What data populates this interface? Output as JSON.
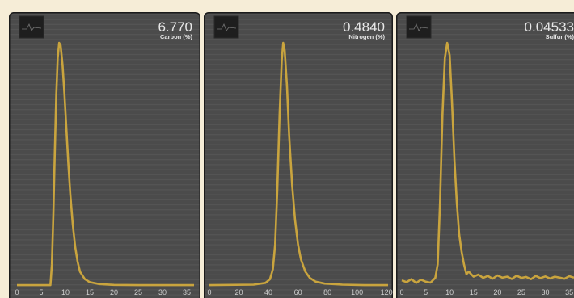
{
  "chart_data": [
    {
      "type": "line",
      "title": "6.770",
      "subtitle": "Carbon (%)",
      "color": "#c9a43e",
      "x": [
        0,
        6.9,
        7.2,
        7.5,
        7.8,
        8.1,
        8.4,
        8.7,
        9.0,
        9.4,
        9.8,
        10.2,
        10.6,
        11.0,
        11.5,
        12.0,
        12.5,
        13.0,
        14.0,
        15.0,
        17,
        20,
        25,
        30,
        36.5
      ],
      "values": [
        1.6,
        1.6,
        10,
        30,
        55,
        78,
        93,
        99,
        98,
        90,
        78,
        64,
        50,
        38,
        26,
        17,
        11,
        7,
        4,
        2.8,
        2,
        1.7,
        1.6,
        1.6,
        1.6
      ],
      "xlim": [
        0,
        37
      ],
      "xticks": [
        0,
        5,
        10,
        15,
        20,
        25,
        30,
        35
      ],
      "ylim": [
        0,
        100
      ]
    },
    {
      "type": "line",
      "title": "0.4840",
      "subtitle": "Nitrogen (%)",
      "color": "#c9a43e",
      "x": [
        0,
        30,
        38,
        41,
        43,
        44.5,
        46,
        47.5,
        49,
        50,
        51,
        52.5,
        54,
        56,
        58,
        60,
        62,
        65,
        68,
        72,
        78,
        90,
        105,
        121
      ],
      "values": [
        1.6,
        1.8,
        2.5,
        4,
        8,
        18,
        40,
        70,
        92,
        99,
        96,
        82,
        62,
        42,
        28,
        18,
        12,
        7,
        4.5,
        3,
        2.2,
        1.8,
        1.6,
        1.6
      ],
      "xlim": [
        0,
        121
      ],
      "xticks": [
        0,
        20,
        40,
        60,
        80,
        100,
        120
      ],
      "ylim": [
        0,
        100
      ]
    },
    {
      "type": "line",
      "title": "0.04533",
      "subtitle": "Sulfur (%)",
      "color": "#c9a43e",
      "x": [
        0,
        1,
        2,
        3,
        4,
        5,
        6,
        7,
        7.5,
        8,
        8.5,
        9,
        9.5,
        10,
        10.5,
        11,
        11.5,
        12,
        12.5,
        13,
        13.5,
        14,
        15,
        16,
        17,
        18,
        19,
        20,
        21,
        22,
        23,
        24,
        25,
        26,
        27,
        28,
        29,
        30,
        31,
        32,
        33,
        34,
        35,
        36
      ],
      "values": [
        3.5,
        2.8,
        4,
        2.5,
        3.8,
        3,
        2.6,
        4.5,
        10,
        35,
        70,
        93,
        99,
        94,
        75,
        52,
        35,
        22,
        15,
        10,
        6,
        7,
        5,
        5.8,
        4.5,
        5.3,
        4.2,
        5.5,
        4.6,
        5,
        4.1,
        5.4,
        4.5,
        4.9,
        4,
        5.3,
        4.4,
        5.1,
        4.3,
        5,
        4.6,
        4.2,
        5.2,
        4.6
      ],
      "xlim": [
        0,
        36
      ],
      "xticks": [
        0,
        5,
        10,
        15,
        20,
        25,
        30,
        35
      ],
      "ylim": [
        0,
        100
      ]
    }
  ]
}
